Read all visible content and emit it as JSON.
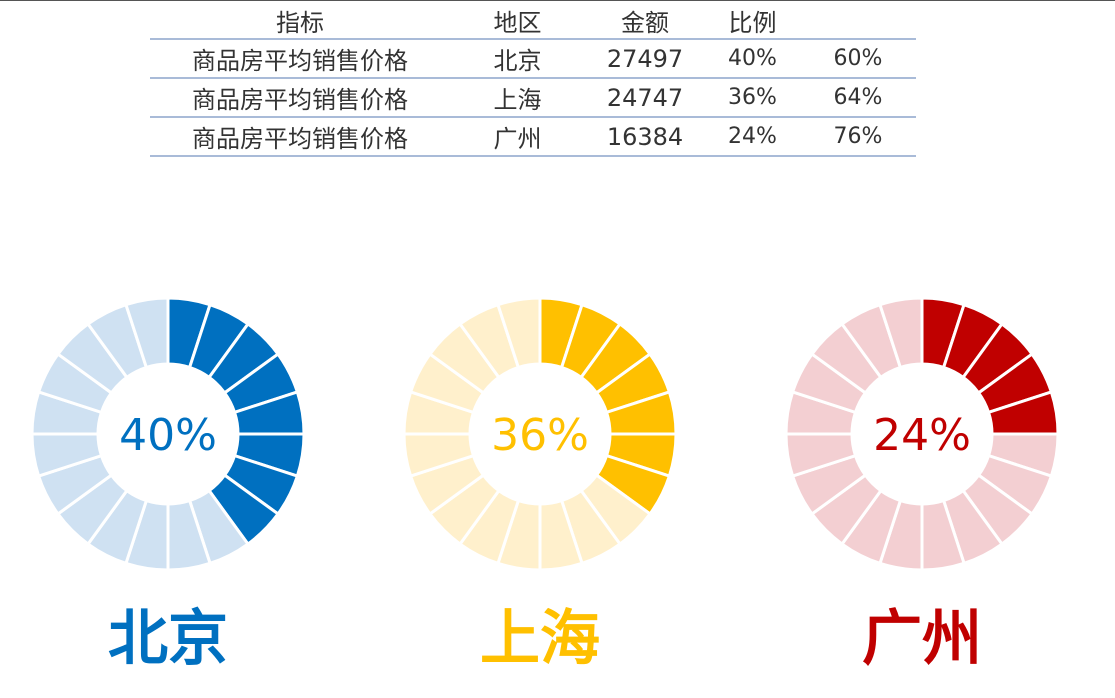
{
  "table": {
    "headers": [
      "指标",
      "地区",
      "金额",
      "比例",
      ""
    ],
    "rows": [
      {
        "indicator": "商品房平均销售价格",
        "region": "北京",
        "amount": "27497",
        "ratio": "40%",
        "remainder": "60%"
      },
      {
        "indicator": "商品房平均销售价格",
        "region": "上海",
        "amount": "24747",
        "ratio": "36%",
        "remainder": "64%"
      },
      {
        "indicator": "商品房平均销售价格",
        "region": "广州",
        "amount": "16384",
        "ratio": "24%",
        "remainder": "76%"
      }
    ]
  },
  "chart_data": [
    {
      "type": "pie",
      "subtype": "segmented-donut",
      "title": "北京",
      "center_label": "40%",
      "value": 0.4,
      "segments_total": 20,
      "segments_filled": 8,
      "color": "#0070c0",
      "track_color": "#cfe1f2"
    },
    {
      "type": "pie",
      "subtype": "segmented-donut",
      "title": "上海",
      "center_label": "36%",
      "value": 0.36,
      "segments_total": 20,
      "segments_filled": 7,
      "color": "#ffc000",
      "track_color": "#fff0cc"
    },
    {
      "type": "pie",
      "subtype": "segmented-donut",
      "title": "广州",
      "center_label": "24%",
      "value": 0.24,
      "segments_total": 20,
      "segments_filled": 5,
      "color": "#c00000",
      "track_color": "#f3cfd2"
    }
  ]
}
